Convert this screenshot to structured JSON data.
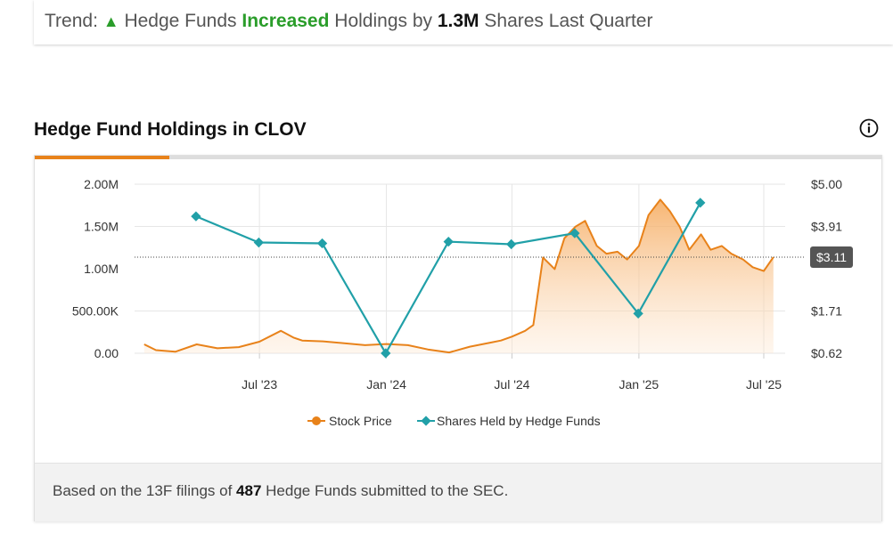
{
  "trend": {
    "prefix": "Trend:",
    "arrow": "▲",
    "part1": "Hedge Funds",
    "direction": "Increased",
    "part2": "Holdings by",
    "amount": "1.3M",
    "part3": "Shares Last Quarter"
  },
  "header": {
    "title": "Hedge Fund Holdings in CLOV",
    "info_icon": "info-circle-icon"
  },
  "footer": {
    "prefix": "Based on the 13F filings of",
    "count": "487",
    "suffix": "Hedge Funds submitted to the SEC."
  },
  "chart_data": {
    "type": "line",
    "grid": true,
    "colors": {
      "price": "#e8821a",
      "holdings": "#21a0a8"
    },
    "x_ticks": [
      "Jul '23",
      "Jan '24",
      "Jul '24",
      "Jan '25",
      "Jul '25"
    ],
    "y_left_ticks": [
      "2.00M",
      "1.50M",
      "1.00M",
      "500.00K",
      "0.00"
    ],
    "y_left_range": [
      0,
      2000000
    ],
    "y_right_ticks": [
      "$5.00",
      "$3.91",
      "$3.11",
      "$1.71",
      "$0.62"
    ],
    "y_right_range": [
      0.62,
      5.0
    ],
    "legend": [
      "Stock Price",
      "Shares Held by Hedge Funds"
    ],
    "legend_position": "bottom",
    "current_price_label": "$3.11",
    "current_price_value": 3.11,
    "series": [
      {
        "name": "Shares Held by Hedge Funds",
        "x": [
          "2023-03-31",
          "2023-06-30",
          "2023-09-30",
          "2023-12-31",
          "2024-03-31",
          "2024-06-30",
          "2024-09-30",
          "2024-12-31",
          "2025-03-31"
        ],
        "values": [
          1620000,
          1310000,
          1300000,
          0,
          1320000,
          1290000,
          1420000,
          470000,
          1780000
        ]
      },
      {
        "name": "Stock Price",
        "x": [
          "2023-01-15",
          "2023-02-01",
          "2023-03-01",
          "2023-04-01",
          "2023-05-01",
          "2023-06-01",
          "2023-07-01",
          "2023-08-01",
          "2023-08-20",
          "2023-09-01",
          "2023-10-01",
          "2023-11-01",
          "2023-12-01",
          "2024-01-01",
          "2024-02-01",
          "2024-03-01",
          "2024-04-01",
          "2024-05-01",
          "2024-06-01",
          "2024-06-15",
          "2024-07-01",
          "2024-07-20",
          "2024-08-01",
          "2024-08-15",
          "2024-09-01",
          "2024-09-15",
          "2024-10-01",
          "2024-10-15",
          "2024-11-01",
          "2024-11-15",
          "2024-12-01",
          "2024-12-15",
          "2025-01-01",
          "2025-01-15",
          "2025-02-01",
          "2025-02-15",
          "2025-03-01",
          "2025-03-15",
          "2025-04-01",
          "2025-04-15",
          "2025-05-01",
          "2025-05-15",
          "2025-06-01",
          "2025-06-15",
          "2025-07-01",
          "2025-07-15"
        ],
        "values": [
          0.85,
          0.7,
          0.66,
          0.85,
          0.75,
          0.78,
          0.92,
          1.2,
          1.02,
          0.95,
          0.93,
          0.88,
          0.83,
          0.86,
          0.83,
          0.72,
          0.64,
          0.79,
          0.9,
          0.95,
          1.05,
          1.2,
          1.35,
          3.1,
          2.8,
          3.6,
          3.9,
          4.05,
          3.4,
          3.2,
          3.25,
          3.05,
          3.4,
          4.2,
          4.6,
          4.3,
          3.9,
          3.3,
          3.7,
          3.3,
          3.4,
          3.2,
          3.05,
          2.85,
          2.75,
          3.11
        ]
      }
    ]
  }
}
